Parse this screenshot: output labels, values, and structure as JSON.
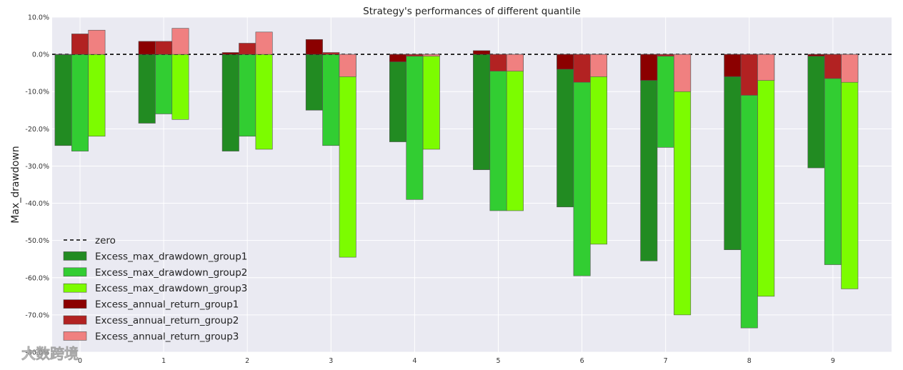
{
  "chart_data": {
    "type": "bar",
    "title": "Strategy's performances of different quantile",
    "ylabel": "Max_drawdown",
    "xlabel": "",
    "categories": [
      "0",
      "1",
      "2",
      "3",
      "4",
      "5",
      "6",
      "7",
      "8",
      "9"
    ],
    "ylim": [
      -80,
      10
    ],
    "yticks": [
      10,
      0,
      -10,
      -20,
      -30,
      -40,
      -50,
      -60,
      -70,
      -80
    ],
    "ytick_labels": [
      "10.0%",
      "0.0%",
      "-10.0%",
      "-20.0%",
      "-30.0%",
      "-40.0%",
      "-50.0%",
      "-60.0%",
      "-70.0%",
      "-80.0%"
    ],
    "grid": true,
    "legend_position": "lower-left",
    "zero_line_label": "zero",
    "series": [
      {
        "name": "Excess_max_drawdown_group1",
        "color": "#228B22",
        "values": [
          -24.5,
          -18.5,
          -26,
          -15,
          -23.5,
          -31,
          -41,
          -55.5,
          -52.5,
          -30.5
        ]
      },
      {
        "name": "Excess_max_drawdown_group2",
        "color": "#32CD32",
        "values": [
          -26,
          -16,
          -22,
          -24.5,
          -39,
          -42,
          -59.5,
          -25,
          -73.5,
          -56.5
        ]
      },
      {
        "name": "Excess_max_drawdown_group3",
        "color": "#7CFC00",
        "values": [
          -22,
          -17.5,
          -25.5,
          -54.5,
          -25.5,
          -42,
          -51,
          -70,
          -65,
          -63
        ]
      },
      {
        "name": "Excess_annual_return_group1",
        "color": "#8B0000",
        "values": [
          0,
          3.5,
          0.5,
          4,
          -2,
          1,
          -4,
          -7,
          -6,
          -0.5
        ]
      },
      {
        "name": "Excess_annual_return_group2",
        "color": "#B22222",
        "values": [
          5.5,
          3.5,
          3,
          0.5,
          -0.5,
          -4.5,
          -7.5,
          -0.5,
          -11,
          -6.5
        ]
      },
      {
        "name": "Excess_annual_return_group3",
        "color": "#F08080",
        "values": [
          6.5,
          7,
          6,
          -6,
          -0.5,
          -4.5,
          -6,
          -10,
          -7,
          -7.5
        ]
      }
    ]
  },
  "watermark": "大数跨境",
  "colors": {
    "plot_bg": "#EAEAF2",
    "grid": "#ffffff"
  }
}
